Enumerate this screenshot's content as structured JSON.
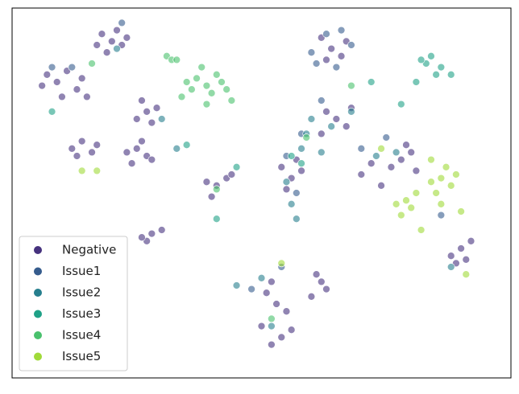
{
  "chart_data": {
    "type": "scatter",
    "xlim": [
      0,
      100
    ],
    "ylim": [
      0,
      100
    ],
    "legend": "lower left",
    "alpha": 0.6,
    "series": [
      {
        "name": "Negative",
        "color": "#46327e",
        "x": [
          20,
          18,
          22,
          19,
          21,
          17,
          23,
          7,
          9,
          11,
          13,
          15,
          6,
          10,
          14,
          14,
          12,
          16,
          13,
          17,
          23,
          25,
          27,
          24,
          26,
          28,
          27,
          25,
          29,
          26,
          28,
          41,
          43,
          40,
          39,
          44,
          28,
          27,
          30,
          26,
          64,
          62,
          66,
          63,
          67,
          65,
          63,
          67,
          62,
          68,
          56,
          58,
          55,
          54,
          57,
          78,
          80,
          76,
          79,
          81,
          90,
          88,
          92,
          89,
          91,
          53,
          51,
          55,
          52,
          54,
          52,
          56,
          50,
          62,
          63,
          61,
          60,
          70,
          72,
          74
        ],
        "values": [
          91,
          93,
          90,
          88,
          94,
          90,
          92,
          82,
          80,
          83,
          78,
          76,
          79,
          76,
          81,
          64,
          62,
          61,
          60,
          63,
          61,
          62,
          60,
          58,
          64,
          59,
          72,
          70,
          73,
          75,
          69,
          52,
          54,
          49,
          53,
          55,
          39,
          37,
          40,
          38,
          89,
          92,
          87,
          86,
          91,
          70,
          72,
          68,
          66,
          73,
          54,
          56,
          51,
          57,
          59,
          59,
          61,
          57,
          63,
          56,
          35,
          33,
          37,
          31,
          32,
          20,
          23,
          18,
          26,
          11,
          9,
          13,
          14,
          26,
          24,
          28,
          22,
          55,
          58,
          52
        ]
      },
      {
        "name": "Issue1",
        "color": "#365c8d",
        "x": [
          63,
          60,
          68,
          65,
          61,
          66,
          12,
          8,
          57,
          62,
          55,
          54,
          70,
          86,
          22,
          48,
          58,
          75
        ],
        "values": [
          93,
          88,
          90,
          84,
          85,
          94,
          84,
          84,
          50,
          75,
          60,
          30,
          62,
          44,
          96,
          24,
          66,
          65
        ]
      },
      {
        "name": "Issue2",
        "color": "#277f8e",
        "x": [
          60,
          64,
          58,
          55,
          56,
          59,
          68,
          77,
          73,
          52,
          50,
          30,
          33,
          21,
          88,
          62,
          57,
          45
        ],
        "values": [
          70,
          68,
          62,
          53,
          47,
          66,
          72,
          61,
          60,
          14,
          27,
          70,
          62,
          89,
          30,
          61,
          43,
          25
        ]
      },
      {
        "name": "Issue3",
        "color": "#1fa187",
        "x": [
          83,
          85,
          82,
          86,
          81,
          84,
          78,
          88,
          72,
          35,
          45,
          58,
          56,
          41,
          8
        ],
        "values": [
          85,
          82,
          86,
          84,
          80,
          87,
          74,
          82,
          80,
          63,
          57,
          58,
          60,
          43,
          72
        ]
      },
      {
        "name": "Issue4",
        "color": "#4ac16d",
        "x": [
          35,
          37,
          39,
          41,
          43,
          36,
          40,
          31,
          32,
          33,
          44,
          38,
          42,
          34,
          39,
          41,
          68,
          59,
          52,
          16
        ],
        "values": [
          80,
          81,
          79,
          82,
          78,
          78,
          77,
          87,
          86,
          86,
          75,
          84,
          80,
          76,
          74,
          51,
          79,
          65,
          16,
          85
        ]
      },
      {
        "name": "Issue5",
        "color": "#a0da39",
        "x": [
          86,
          88,
          87,
          85,
          89,
          84,
          79,
          80,
          78,
          81,
          77,
          86,
          90,
          84,
          14,
          17,
          54,
          91,
          82,
          74
        ],
        "values": [
          54,
          52,
          57,
          50,
          55,
          53,
          48,
          46,
          44,
          50,
          47,
          47,
          45,
          59,
          56,
          56,
          31,
          28,
          40,
          62
        ]
      }
    ]
  }
}
